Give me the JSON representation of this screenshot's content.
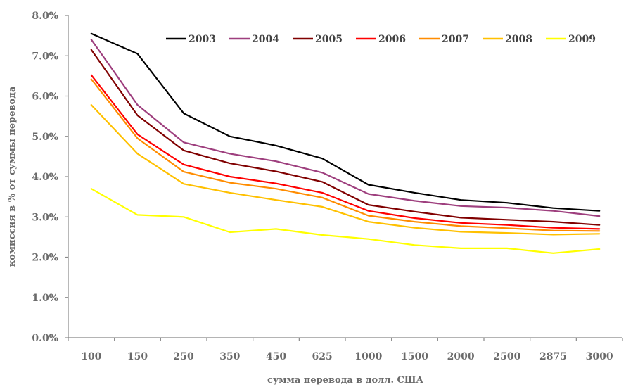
{
  "chart_data": {
    "type": "line",
    "xlabel": "сумма перевода в долл. США",
    "ylabel": "комиссия в % от суммы перевода",
    "categories": [
      "100",
      "150",
      "250",
      "350",
      "450",
      "625",
      "1000",
      "1500",
      "2000",
      "2500",
      "2875",
      "3000"
    ],
    "ylim": [
      0,
      8
    ],
    "y_ticks": [
      "0.0%",
      "1.0%",
      "2.0%",
      "3.0%",
      "4.0%",
      "5.0%",
      "6.0%",
      "7.0%",
      "8.0%"
    ],
    "grid": false,
    "legend_position": "top-right",
    "series": [
      {
        "name": "2003",
        "color": "#000000",
        "values": [
          7.55,
          7.05,
          5.57,
          5.0,
          4.77,
          4.45,
          3.8,
          3.6,
          3.42,
          3.35,
          3.22,
          3.15
        ]
      },
      {
        "name": "2004",
        "color": "#9e3f7e",
        "values": [
          7.4,
          5.78,
          4.85,
          4.57,
          4.38,
          4.1,
          3.57,
          3.4,
          3.27,
          3.23,
          3.15,
          3.02
        ]
      },
      {
        "name": "2005",
        "color": "#800000",
        "values": [
          7.15,
          5.52,
          4.65,
          4.33,
          4.13,
          3.87,
          3.3,
          3.13,
          2.98,
          2.93,
          2.88,
          2.8
        ]
      },
      {
        "name": "2006",
        "color": "#ff0000",
        "values": [
          6.52,
          5.05,
          4.3,
          4.0,
          3.83,
          3.6,
          3.15,
          2.97,
          2.85,
          2.8,
          2.73,
          2.7
        ]
      },
      {
        "name": "2007",
        "color": "#ff8c00",
        "values": [
          6.42,
          4.95,
          4.12,
          3.85,
          3.7,
          3.48,
          3.03,
          2.88,
          2.77,
          2.72,
          2.66,
          2.65
        ]
      },
      {
        "name": "2008",
        "color": "#ffc000",
        "values": [
          5.78,
          4.57,
          3.82,
          3.6,
          3.42,
          3.25,
          2.88,
          2.73,
          2.63,
          2.6,
          2.56,
          2.58
        ]
      },
      {
        "name": "2009",
        "color": "#ffff00",
        "values": [
          3.7,
          3.05,
          3.0,
          2.62,
          2.7,
          2.55,
          2.45,
          2.3,
          2.22,
          2.22,
          2.1,
          2.2
        ]
      }
    ]
  }
}
